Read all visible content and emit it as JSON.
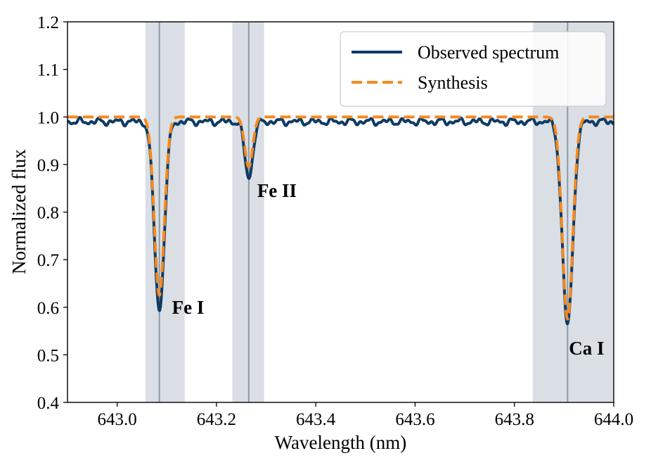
{
  "chart_data": {
    "type": "line",
    "xlabel": "Wavelength (nm)",
    "ylabel": "Normalized flux",
    "xlim": [
      642.9,
      644.0
    ],
    "ylim": [
      0.4,
      1.2
    ],
    "x_ticks": [
      643.0,
      643.2,
      643.4,
      643.6,
      643.8,
      644.0
    ],
    "x_tick_labels": [
      "643.0",
      "643.2",
      "643.4",
      "643.6",
      "643.8",
      "644.0"
    ],
    "y_ticks": [
      0.4,
      0.5,
      0.6,
      0.7,
      0.8,
      0.9,
      1.0,
      1.1,
      1.2
    ],
    "y_tick_labels": [
      "0.4",
      "0.5",
      "0.6",
      "0.7",
      "0.8",
      "0.9",
      "1.0",
      "1.1",
      "1.2"
    ],
    "grid": false,
    "legend_position": "top-right",
    "colors": {
      "observed": "#0d3b66",
      "synthesis": "#f5891f",
      "band": "#d9dfe5",
      "line_marker": "#8c9aa6"
    },
    "shaded_regions": [
      {
        "x0": 643.057,
        "x1": 643.136
      },
      {
        "x0": 643.232,
        "x1": 643.296
      },
      {
        "x0": 643.837,
        "x1": 644.0
      }
    ],
    "lines": [
      {
        "label": "Fe I",
        "center": 643.085,
        "depth_observed": 0.595,
        "depth_synthesis": 0.625,
        "width": 0.01
      },
      {
        "label": "Fe II",
        "center": 643.265,
        "depth_observed": 0.873,
        "depth_synthesis": 0.895,
        "width": 0.008
      },
      {
        "label": "Ca I",
        "center": 643.907,
        "depth_observed": 0.563,
        "depth_synthesis": 0.575,
        "width": 0.0105
      }
    ],
    "series": [
      {
        "name": "Observed spectrum",
        "style": "solid",
        "continuum": 0.99,
        "noise_amplitude": 0.008
      },
      {
        "name": "Synthesis",
        "style": "dashed",
        "continuum": 1.0,
        "noise_amplitude": 0.0
      }
    ]
  }
}
